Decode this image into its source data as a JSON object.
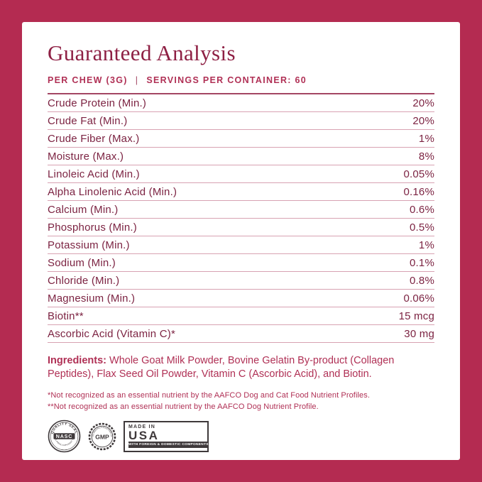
{
  "colors": {
    "brand": "#b42b51",
    "panel": "#ffffff",
    "title": "#8e2044",
    "accent": "#b03055",
    "table-text": "#7c2342",
    "divider": "#d8a2b2",
    "rule": "#a34663",
    "badge": "#3f393b"
  },
  "header": {
    "title": "Guaranteed Analysis",
    "serving_left": "PER CHEW (3G)",
    "separator": "|",
    "serving_right": "SERVINGS PER CONTAINER: 60"
  },
  "analysis_rows": [
    {
      "label": "Crude Protein (Min.)",
      "value": "20%"
    },
    {
      "label": "Crude Fat (Min.)",
      "value": "20%"
    },
    {
      "label": "Crude Fiber (Max.)",
      "value": "1%"
    },
    {
      "label": "Moisture (Max.)",
      "value": "8%"
    },
    {
      "label": "Linoleic Acid (Min.)",
      "value": "0.05%"
    },
    {
      "label": "Alpha Linolenic Acid (Min.)",
      "value": "0.16%"
    },
    {
      "label": "Calcium (Min.)",
      "value": "0.6%"
    },
    {
      "label": "Phosphorus (Min.)",
      "value": "0.5%"
    },
    {
      "label": "Potassium (Min.)",
      "value": "1%"
    },
    {
      "label": "Sodium (Min.)",
      "value": "0.1%"
    },
    {
      "label": "Chloride (Min.)",
      "value": "0.8%"
    },
    {
      "label": "Magnesium (Min.)",
      "value": "0.06%"
    },
    {
      "label": "Biotin**",
      "value": "15 mcg"
    },
    {
      "label": "Ascorbic Acid (Vitamin C)*",
      "value": "30 mg"
    }
  ],
  "ingredients": {
    "label": "Ingredients:",
    "text": "Whole Goat Milk Powder, Bovine Gelatin By-product (Collagen Peptides), Flax Seed Oil Powder, Vitamin C (Ascorbic Acid), and Biotin."
  },
  "footnotes": [
    "*Not recognized as an essential nutrient by the AAFCO Dog and Cat Food Nutrient Profiles.",
    "**Not recognized as an essential nutrient by the AAFCO Dog Nutrient Profile."
  ],
  "badges": {
    "nasc": {
      "top_arc": "QUALITY SEAL",
      "center": "NASC",
      "bottom_arc": "NATIONAL ANIMAL SUPPLEMENT COUNCIL"
    },
    "gmp": {
      "center": "GMP",
      "arc": "GOOD MANUFACTURING PRACTICES"
    },
    "usa": {
      "line1": "MADE IN",
      "line2": "USA",
      "bar": "WITH FOREIGN & DOMESTIC COMPONENTS"
    }
  }
}
